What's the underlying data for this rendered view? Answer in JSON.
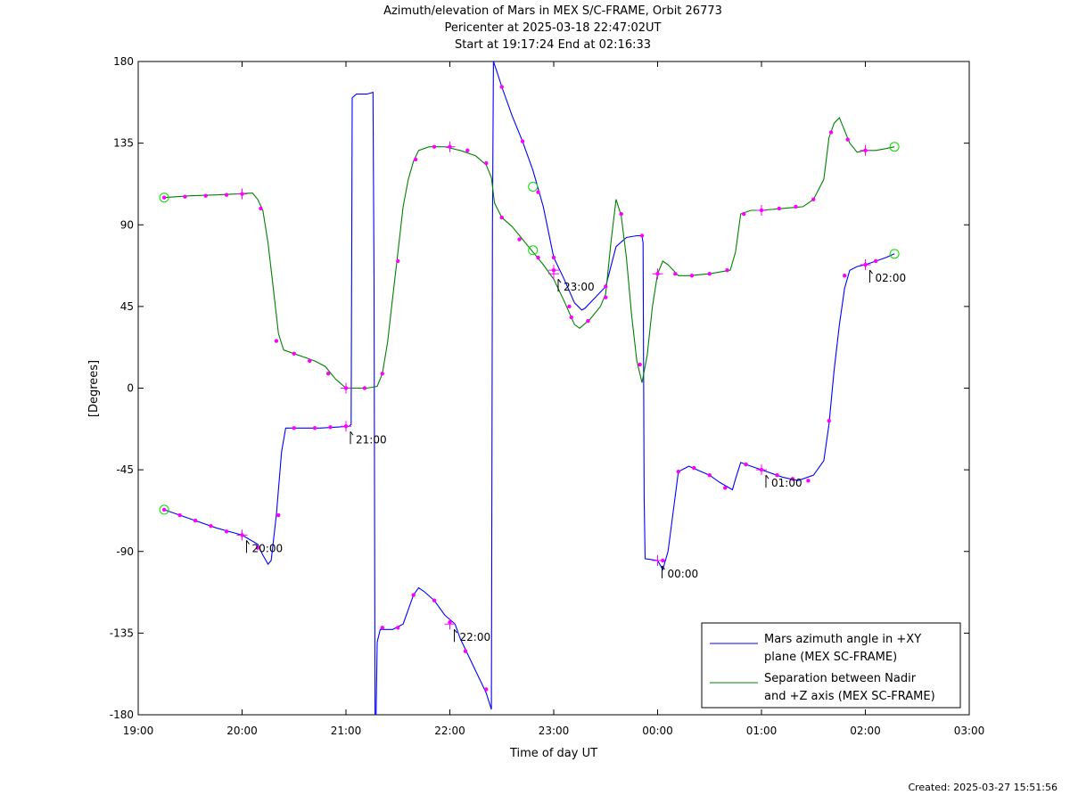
{
  "chart_data": {
    "type": "line",
    "title": "Azimuth/elevation of Mars in MEX S/C-FRAME,  Orbit 26773",
    "subtitle1": "Pericenter at 2025-03-18 22:47:02UT",
    "subtitle2": "Start at 19:17:24 End at 02:16:33",
    "xlabel": "Time of day UT",
    "ylabel": "[Degrees]",
    "xlim": [
      19.0,
      27.0
    ],
    "ylim": [
      -180,
      180
    ],
    "xticks": [
      {
        "v": 19,
        "label": "19:00"
      },
      {
        "v": 20,
        "label": "20:00"
      },
      {
        "v": 21,
        "label": "21:00"
      },
      {
        "v": 22,
        "label": "22:00"
      },
      {
        "v": 23,
        "label": "23:00"
      },
      {
        "v": 24,
        "label": "00:00"
      },
      {
        "v": 25,
        "label": "01:00"
      },
      {
        "v": 26,
        "label": "02:00"
      },
      {
        "v": 27,
        "label": "03:00"
      }
    ],
    "yticks": [
      {
        "v": 180,
        "label": "180"
      },
      {
        "v": 135,
        "label": "135"
      },
      {
        "v": 90,
        "label": "90"
      },
      {
        "v": 45,
        "label": "45"
      },
      {
        "v": 0,
        "label": "0"
      },
      {
        "v": -45,
        "label": "-45"
      },
      {
        "v": -90,
        "label": "-90"
      },
      {
        "v": -135,
        "label": "-135"
      },
      {
        "v": -180,
        "label": "-180"
      }
    ],
    "series": [
      {
        "name": "Mars azimuth angle in +XY plane (MEX SC-FRAME)",
        "legend_lines": [
          "Mars azimuth angle in +XY",
          "plane (MEX SC-FRAME)"
        ],
        "color": "#0000ff",
        "points": [
          [
            19.25,
            -67
          ],
          [
            19.5,
            -72
          ],
          [
            19.75,
            -77
          ],
          [
            20.0,
            -81
          ],
          [
            20.15,
            -86
          ],
          [
            20.2,
            -92
          ],
          [
            20.25,
            -97
          ],
          [
            20.28,
            -95
          ],
          [
            20.33,
            -70
          ],
          [
            20.38,
            -35
          ],
          [
            20.42,
            -22
          ],
          [
            20.55,
            -22
          ],
          [
            20.75,
            -22
          ],
          [
            20.9,
            -21.5
          ],
          [
            21.03,
            -21
          ],
          [
            21.05,
            -20
          ],
          [
            21.06,
            160
          ],
          [
            21.1,
            162
          ],
          [
            21.2,
            162
          ],
          [
            21.26,
            163
          ],
          [
            21.27,
            60
          ],
          [
            21.28,
            -180
          ],
          [
            21.29,
            -180
          ],
          [
            21.3,
            -140
          ],
          [
            21.33,
            -133
          ],
          [
            21.45,
            -133
          ],
          [
            21.55,
            -130
          ],
          [
            21.6,
            -122
          ],
          [
            21.65,
            -114
          ],
          [
            21.7,
            -110
          ],
          [
            21.75,
            -112
          ],
          [
            21.85,
            -117
          ],
          [
            21.95,
            -125
          ],
          [
            22.05,
            -130
          ],
          [
            22.1,
            -138
          ],
          [
            22.2,
            -150
          ],
          [
            22.3,
            -162
          ],
          [
            22.35,
            -168
          ],
          [
            22.4,
            -177
          ],
          [
            22.41,
            90
          ],
          [
            22.42,
            180
          ],
          [
            22.45,
            175
          ],
          [
            22.5,
            166
          ],
          [
            22.6,
            150
          ],
          [
            22.7,
            136
          ],
          [
            22.8,
            120
          ],
          [
            22.9,
            100
          ],
          [
            23.0,
            72
          ],
          [
            23.1,
            60
          ],
          [
            23.2,
            47
          ],
          [
            23.27,
            43
          ],
          [
            23.3,
            44
          ],
          [
            23.4,
            50
          ],
          [
            23.5,
            56
          ],
          [
            23.6,
            78
          ],
          [
            23.7,
            83
          ],
          [
            23.8,
            84
          ],
          [
            23.85,
            84
          ],
          [
            23.86,
            80
          ],
          [
            23.87,
            -60
          ],
          [
            23.88,
            -94
          ],
          [
            24.0,
            -95
          ],
          [
            24.05,
            -100
          ],
          [
            24.1,
            -90
          ],
          [
            24.2,
            -46
          ],
          [
            24.3,
            -43
          ],
          [
            24.5,
            -48
          ],
          [
            24.6,
            -52
          ],
          [
            24.72,
            -56
          ],
          [
            24.75,
            -50
          ],
          [
            24.8,
            -41
          ],
          [
            24.9,
            -43
          ],
          [
            25.0,
            -45
          ],
          [
            25.2,
            -49
          ],
          [
            25.35,
            -51
          ],
          [
            25.5,
            -48
          ],
          [
            25.6,
            -40
          ],
          [
            25.65,
            -20
          ],
          [
            25.7,
            10
          ],
          [
            25.75,
            35
          ],
          [
            25.8,
            55
          ],
          [
            25.85,
            65
          ],
          [
            25.92,
            67
          ],
          [
            26.0,
            68
          ],
          [
            26.1,
            70
          ],
          [
            26.2,
            72
          ],
          [
            26.28,
            74
          ]
        ],
        "markers": [
          [
            19.25,
            -67
          ],
          [
            19.4,
            -70
          ],
          [
            19.55,
            -73
          ],
          [
            19.7,
            -76
          ],
          [
            19.85,
            -79
          ],
          [
            20.0,
            -81
          ],
          [
            20.15,
            -88
          ],
          [
            20.35,
            -70
          ],
          [
            20.5,
            -22
          ],
          [
            20.7,
            -22
          ],
          [
            20.85,
            -21.5
          ],
          [
            21.0,
            -21
          ],
          [
            21.35,
            -132
          ],
          [
            21.5,
            -132
          ],
          [
            21.65,
            -114
          ],
          [
            21.85,
            -117
          ],
          [
            22.0,
            -129
          ],
          [
            22.15,
            -145
          ],
          [
            22.35,
            -166
          ],
          [
            22.5,
            166
          ],
          [
            22.7,
            136
          ],
          [
            22.85,
            108
          ],
          [
            23.0,
            72
          ],
          [
            23.15,
            45
          ],
          [
            23.5,
            56
          ],
          [
            23.85,
            84
          ],
          [
            24.05,
            -95
          ],
          [
            24.2,
            -46
          ],
          [
            24.35,
            -44
          ],
          [
            24.5,
            -48
          ],
          [
            24.65,
            -55
          ],
          [
            24.85,
            -42
          ],
          [
            25.0,
            -45
          ],
          [
            25.15,
            -48
          ],
          [
            25.3,
            -50
          ],
          [
            25.45,
            -51
          ],
          [
            25.65,
            -18
          ],
          [
            25.8,
            62
          ],
          [
            26.0,
            68
          ],
          [
            26.1,
            70
          ]
        ],
        "hour_ticks": [
          {
            "x": 20.0,
            "y": -81,
            "label": "20:00"
          },
          {
            "x": 21.0,
            "y": -21,
            "label": "21:00"
          },
          {
            "x": 22.0,
            "y": -130,
            "label": "22:00"
          },
          {
            "x": 23.0,
            "y": 63,
            "label": "23:00"
          },
          {
            "x": 24.0,
            "y": -95,
            "label": "00:00"
          },
          {
            "x": 25.0,
            "y": -45,
            "label": "01:00"
          },
          {
            "x": 26.0,
            "y": 68,
            "label": "02:00"
          }
        ],
        "start_end": [
          [
            19.25,
            -67
          ],
          [
            26.28,
            74
          ]
        ]
      },
      {
        "name": "Separation between Nadir and +Z axis (MEX SC-FRAME)",
        "legend_lines": [
          "Separation between Nadir",
          "and +Z axis (MEX SC-FRAME)"
        ],
        "color": "#008000",
        "points": [
          [
            19.25,
            105
          ],
          [
            19.5,
            106
          ],
          [
            19.75,
            106.5
          ],
          [
            19.95,
            107
          ],
          [
            20.1,
            107.5
          ],
          [
            20.15,
            104
          ],
          [
            20.2,
            98
          ],
          [
            20.25,
            80
          ],
          [
            20.3,
            55
          ],
          [
            20.35,
            30
          ],
          [
            20.4,
            21
          ],
          [
            20.5,
            19
          ],
          [
            20.6,
            17
          ],
          [
            20.7,
            15
          ],
          [
            20.8,
            12
          ],
          [
            20.9,
            5
          ],
          [
            21.0,
            0
          ],
          [
            21.1,
            0
          ],
          [
            21.2,
            0
          ],
          [
            21.3,
            1
          ],
          [
            21.35,
            8
          ],
          [
            21.4,
            25
          ],
          [
            21.45,
            50
          ],
          [
            21.5,
            75
          ],
          [
            21.55,
            100
          ],
          [
            21.6,
            115
          ],
          [
            21.65,
            125
          ],
          [
            21.7,
            131
          ],
          [
            21.8,
            133
          ],
          [
            21.95,
            133
          ],
          [
            22.1,
            131
          ],
          [
            22.25,
            128
          ],
          [
            22.35,
            123
          ],
          [
            22.4,
            116
          ],
          [
            22.43,
            102
          ],
          [
            22.5,
            94
          ],
          [
            22.6,
            89
          ],
          [
            22.7,
            82
          ],
          [
            22.8,
            75
          ],
          [
            22.9,
            68
          ],
          [
            23.0,
            60
          ],
          [
            23.1,
            48
          ],
          [
            23.2,
            35
          ],
          [
            23.25,
            33
          ],
          [
            23.35,
            38
          ],
          [
            23.45,
            45
          ],
          [
            23.5,
            52
          ],
          [
            23.55,
            80
          ],
          [
            23.6,
            104
          ],
          [
            23.65,
            95
          ],
          [
            23.7,
            72
          ],
          [
            23.75,
            40
          ],
          [
            23.8,
            15
          ],
          [
            23.85,
            3
          ],
          [
            23.9,
            18
          ],
          [
            23.95,
            45
          ],
          [
            24.0,
            63
          ],
          [
            24.05,
            70
          ],
          [
            24.1,
            68
          ],
          [
            24.2,
            62
          ],
          [
            24.3,
            62
          ],
          [
            24.5,
            63
          ],
          [
            24.6,
            64
          ],
          [
            24.7,
            65
          ],
          [
            24.75,
            75
          ],
          [
            24.8,
            96
          ],
          [
            24.9,
            98
          ],
          [
            25.0,
            98
          ],
          [
            25.2,
            99
          ],
          [
            25.4,
            100
          ],
          [
            25.5,
            104
          ],
          [
            25.6,
            115
          ],
          [
            25.65,
            138
          ],
          [
            25.7,
            146
          ],
          [
            25.75,
            149
          ],
          [
            25.8,
            142
          ],
          [
            25.85,
            135
          ],
          [
            25.92,
            130
          ],
          [
            26.0,
            131
          ],
          [
            26.1,
            131
          ],
          [
            26.2,
            132
          ],
          [
            26.28,
            133
          ]
        ],
        "markers": [
          [
            19.25,
            105
          ],
          [
            19.45,
            105.5
          ],
          [
            19.65,
            106
          ],
          [
            19.85,
            106.5
          ],
          [
            20.0,
            107
          ],
          [
            20.18,
            99
          ],
          [
            20.33,
            26
          ],
          [
            20.5,
            19
          ],
          [
            20.65,
            15
          ],
          [
            20.83,
            8
          ],
          [
            21.0,
            0
          ],
          [
            21.18,
            0
          ],
          [
            21.35,
            8
          ],
          [
            21.5,
            70
          ],
          [
            21.67,
            126
          ],
          [
            21.85,
            133
          ],
          [
            22.0,
            133
          ],
          [
            22.17,
            131
          ],
          [
            22.35,
            124
          ],
          [
            22.5,
            94
          ],
          [
            22.67,
            82
          ],
          [
            22.85,
            72
          ],
          [
            23.0,
            65
          ],
          [
            23.17,
            39
          ],
          [
            23.33,
            37
          ],
          [
            23.5,
            50
          ],
          [
            23.65,
            96
          ],
          [
            23.83,
            13
          ],
          [
            24.0,
            63
          ],
          [
            24.17,
            63
          ],
          [
            24.33,
            62
          ],
          [
            24.5,
            63
          ],
          [
            24.67,
            65
          ],
          [
            24.83,
            96
          ],
          [
            25.0,
            98
          ],
          [
            25.17,
            99
          ],
          [
            25.33,
            100
          ],
          [
            25.5,
            104
          ],
          [
            25.67,
            141
          ],
          [
            25.83,
            137
          ],
          [
            26.0,
            131
          ]
        ],
        "hour_ticks": [
          {
            "x": 20.0,
            "y": 107
          },
          {
            "x": 21.0,
            "y": 0
          },
          {
            "x": 22.0,
            "y": 133
          },
          {
            "x": 23.0,
            "y": 65
          },
          {
            "x": 24.0,
            "y": 63
          },
          {
            "x": 25.0,
            "y": 98
          },
          {
            "x": 26.0,
            "y": 131
          }
        ],
        "start_end": [
          [
            19.25,
            105
          ],
          [
            26.28,
            133
          ]
        ]
      }
    ],
    "extra_circles": [
      [
        22.8,
        111
      ],
      [
        22.8,
        76
      ]
    ],
    "legend_position": "bottom-right",
    "marker_color": "#ff00ff",
    "circle_color": "#00dd00",
    "grid": false
  },
  "footer": {
    "created": "Created: 2025-03-27 15:51:56"
  }
}
